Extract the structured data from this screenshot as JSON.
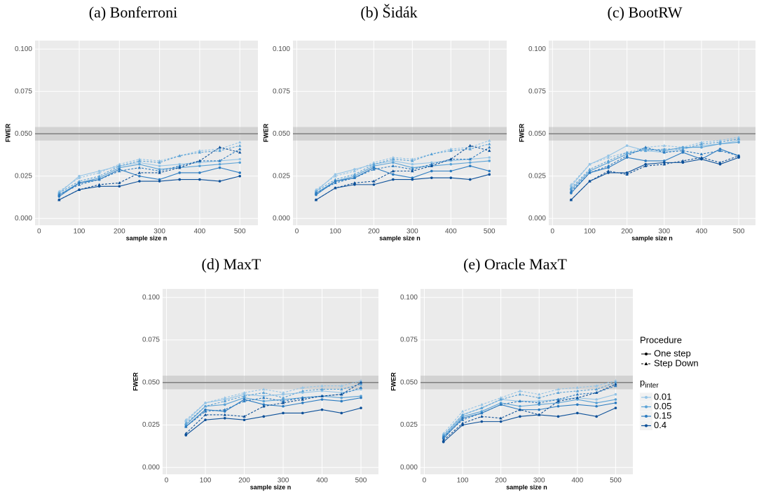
{
  "chart_data": [
    {
      "type": "line",
      "title": "(a) Bonferroni",
      "x_label": "sample size n",
      "y_label": "FWER",
      "x": [
        50,
        100,
        150,
        200,
        250,
        300,
        350,
        400,
        450,
        500
      ],
      "xlim": [
        -10,
        545
      ],
      "ylim": [
        -0.004,
        0.105
      ],
      "xticks": [
        0,
        100,
        200,
        300,
        400,
        500
      ],
      "yticks": [
        {
          "value": 0,
          "label": "0.000"
        },
        0.025,
        {
          "value": 0.05,
          "label": "0.050"
        },
        0.075,
        {
          "value": 0.1,
          "label": "0.100"
        }
      ],
      "grid": true,
      "reference_line": 0.05,
      "reference_band": [
        0.046,
        0.054
      ],
      "series": [
        {
          "p_inter": "0.01",
          "procedure": "One step",
          "values": [
            0.015,
            0.025,
            0.028,
            0.031,
            0.033,
            0.031,
            0.032,
            0.033,
            0.034,
            0.035
          ]
        },
        {
          "p_inter": "0.01",
          "procedure": "Step Down",
          "values": [
            0.016,
            0.024,
            0.027,
            0.032,
            0.035,
            0.034,
            0.037,
            0.04,
            0.041,
            0.045
          ]
        },
        {
          "p_inter": "0.05",
          "procedure": "One step",
          "values": [
            0.014,
            0.021,
            0.024,
            0.03,
            0.032,
            0.029,
            0.03,
            0.031,
            0.032,
            0.033
          ]
        },
        {
          "p_inter": "0.05",
          "procedure": "Step Down",
          "values": [
            0.015,
            0.022,
            0.025,
            0.031,
            0.034,
            0.033,
            0.037,
            0.039,
            0.04,
            0.043
          ]
        },
        {
          "p_inter": "0.15",
          "procedure": "One step",
          "values": [
            0.013,
            0.021,
            0.023,
            0.029,
            0.025,
            0.023,
            0.027,
            0.027,
            0.03,
            0.027
          ]
        },
        {
          "p_inter": "0.15",
          "procedure": "Step Down",
          "values": [
            0.014,
            0.02,
            0.023,
            0.028,
            0.03,
            0.028,
            0.031,
            0.034,
            0.034,
            0.041
          ]
        },
        {
          "p_inter": "0.4",
          "procedure": "One step",
          "values": [
            0.011,
            0.017,
            0.019,
            0.019,
            0.022,
            0.022,
            0.023,
            0.023,
            0.022,
            0.025
          ]
        },
        {
          "p_inter": "0.4",
          "procedure": "Step Down",
          "values": [
            0.011,
            0.017,
            0.02,
            0.021,
            0.027,
            0.027,
            0.03,
            0.034,
            0.042,
            0.039
          ]
        }
      ]
    },
    {
      "type": "line",
      "title": "(b) Šidák",
      "x_label": "sample size n",
      "y_label": "FWER",
      "x": [
        50,
        100,
        150,
        200,
        250,
        300,
        350,
        400,
        450,
        500
      ],
      "xlim": [
        -10,
        545
      ],
      "ylim": [
        -0.004,
        0.105
      ],
      "xticks": [
        0,
        100,
        200,
        300,
        400,
        500
      ],
      "yticks": [
        {
          "value": 0,
          "label": "0.000"
        },
        0.025,
        {
          "value": 0.05,
          "label": "0.050"
        },
        0.075,
        {
          "value": 0.1,
          "label": "0.100"
        }
      ],
      "grid": true,
      "reference_line": 0.05,
      "reference_band": [
        0.046,
        0.054
      ],
      "series": [
        {
          "p_inter": "0.01",
          "procedure": "One step",
          "values": [
            0.016,
            0.026,
            0.029,
            0.032,
            0.034,
            0.032,
            0.033,
            0.034,
            0.035,
            0.036
          ]
        },
        {
          "p_inter": "0.01",
          "procedure": "Step Down",
          "values": [
            0.017,
            0.025,
            0.028,
            0.033,
            0.036,
            0.035,
            0.038,
            0.041,
            0.042,
            0.046
          ]
        },
        {
          "p_inter": "0.05",
          "procedure": "One step",
          "values": [
            0.015,
            0.022,
            0.025,
            0.031,
            0.033,
            0.03,
            0.031,
            0.032,
            0.033,
            0.034
          ]
        },
        {
          "p_inter": "0.05",
          "procedure": "Step Down",
          "values": [
            0.016,
            0.023,
            0.026,
            0.032,
            0.035,
            0.034,
            0.038,
            0.04,
            0.041,
            0.044
          ]
        },
        {
          "p_inter": "0.15",
          "procedure": "One step",
          "values": [
            0.014,
            0.022,
            0.024,
            0.03,
            0.026,
            0.024,
            0.028,
            0.028,
            0.031,
            0.028
          ]
        },
        {
          "p_inter": "0.15",
          "procedure": "Step Down",
          "values": [
            0.015,
            0.021,
            0.024,
            0.029,
            0.031,
            0.029,
            0.032,
            0.035,
            0.035,
            0.042
          ]
        },
        {
          "p_inter": "0.4",
          "procedure": "One step",
          "values": [
            0.011,
            0.018,
            0.02,
            0.02,
            0.023,
            0.023,
            0.024,
            0.024,
            0.023,
            0.026
          ]
        },
        {
          "p_inter": "0.4",
          "procedure": "Step Down",
          "values": [
            0.011,
            0.018,
            0.021,
            0.022,
            0.028,
            0.028,
            0.031,
            0.035,
            0.043,
            0.04
          ]
        }
      ]
    },
    {
      "type": "line",
      "title": "(c) BootRW",
      "x_label": "sample size n",
      "y_label": "FWER",
      "x": [
        50,
        100,
        150,
        200,
        250,
        300,
        350,
        400,
        450,
        500
      ],
      "xlim": [
        -10,
        545
      ],
      "ylim": [
        -0.004,
        0.105
      ],
      "xticks": [
        0,
        100,
        200,
        300,
        400,
        500
      ],
      "yticks": [
        {
          "value": 0,
          "label": "0.000"
        },
        0.025,
        {
          "value": 0.05,
          "label": "0.050"
        },
        0.075,
        {
          "value": 0.1,
          "label": "0.100"
        }
      ],
      "grid": true,
      "reference_line": 0.05,
      "reference_band": [
        0.046,
        0.054
      ],
      "series": [
        {
          "p_inter": "0.01",
          "procedure": "One step",
          "values": [
            0.019,
            0.032,
            0.037,
            0.043,
            0.04,
            0.039,
            0.041,
            0.043,
            0.044,
            0.046
          ]
        },
        {
          "p_inter": "0.01",
          "procedure": "Step Down",
          "values": [
            0.02,
            0.032,
            0.036,
            0.039,
            0.042,
            0.043,
            0.042,
            0.045,
            0.046,
            0.048
          ]
        },
        {
          "p_inter": "0.05",
          "procedure": "One step",
          "values": [
            0.017,
            0.028,
            0.033,
            0.038,
            0.041,
            0.04,
            0.042,
            0.042,
            0.044,
            0.045
          ]
        },
        {
          "p_inter": "0.05",
          "procedure": "Step Down",
          "values": [
            0.018,
            0.029,
            0.034,
            0.039,
            0.04,
            0.041,
            0.041,
            0.044,
            0.045,
            0.047
          ]
        },
        {
          "p_inter": "0.15",
          "procedure": "One step",
          "values": [
            0.015,
            0.027,
            0.03,
            0.036,
            0.034,
            0.034,
            0.039,
            0.035,
            0.041,
            0.037
          ]
        },
        {
          "p_inter": "0.15",
          "procedure": "Step Down",
          "values": [
            0.016,
            0.027,
            0.031,
            0.037,
            0.042,
            0.039,
            0.04,
            0.038,
            0.04,
            0.037
          ]
        },
        {
          "p_inter": "0.4",
          "procedure": "One step",
          "values": [
            0.011,
            0.022,
            0.027,
            0.027,
            0.032,
            0.033,
            0.033,
            0.035,
            0.032,
            0.036
          ]
        },
        {
          "p_inter": "0.4",
          "procedure": "Step Down",
          "values": [
            0.011,
            0.022,
            0.028,
            0.026,
            0.031,
            0.032,
            0.034,
            0.036,
            0.033,
            0.037
          ]
        }
      ]
    },
    {
      "type": "line",
      "title": "(d) MaxT",
      "x_label": "sample size n",
      "y_label": "FWER",
      "x": [
        50,
        100,
        150,
        200,
        250,
        300,
        350,
        400,
        450,
        500
      ],
      "xlim": [
        -10,
        545
      ],
      "ylim": [
        -0.004,
        0.105
      ],
      "xticks": [
        0,
        100,
        200,
        300,
        400,
        500
      ],
      "yticks": [
        {
          "value": 0,
          "label": "0.000"
        },
        0.025,
        {
          "value": 0.05,
          "label": "0.050"
        },
        0.075,
        {
          "value": 0.1,
          "label": "0.100"
        }
      ],
      "grid": true,
      "reference_line": 0.05,
      "reference_band": [
        0.046,
        0.054
      ],
      "series": [
        {
          "p_inter": "0.01",
          "procedure": "One step",
          "values": [
            0.027,
            0.038,
            0.04,
            0.043,
            0.042,
            0.043,
            0.044,
            0.045,
            0.044,
            0.046
          ]
        },
        {
          "p_inter": "0.01",
          "procedure": "Step Down",
          "values": [
            0.028,
            0.038,
            0.041,
            0.044,
            0.046,
            0.044,
            0.047,
            0.048,
            0.048,
            0.051
          ]
        },
        {
          "p_inter": "0.05",
          "procedure": "One step",
          "values": [
            0.025,
            0.036,
            0.037,
            0.041,
            0.039,
            0.04,
            0.041,
            0.042,
            0.041,
            0.042
          ]
        },
        {
          "p_inter": "0.05",
          "procedure": "Step Down",
          "values": [
            0.026,
            0.036,
            0.039,
            0.042,
            0.044,
            0.041,
            0.045,
            0.046,
            0.046,
            0.049
          ]
        },
        {
          "p_inter": "0.15",
          "procedure": "One step",
          "values": [
            0.024,
            0.034,
            0.033,
            0.04,
            0.037,
            0.036,
            0.038,
            0.04,
            0.039,
            0.041
          ]
        },
        {
          "p_inter": "0.15",
          "procedure": "Step Down",
          "values": [
            0.024,
            0.033,
            0.034,
            0.039,
            0.041,
            0.039,
            0.041,
            0.042,
            0.043,
            0.047
          ]
        },
        {
          "p_inter": "0.4",
          "procedure": "One step",
          "values": [
            0.019,
            0.028,
            0.029,
            0.028,
            0.03,
            0.032,
            0.032,
            0.034,
            0.032,
            0.035
          ]
        },
        {
          "p_inter": "0.4",
          "procedure": "Step Down",
          "values": [
            0.02,
            0.031,
            0.031,
            0.03,
            0.036,
            0.038,
            0.04,
            0.042,
            0.043,
            0.05
          ]
        }
      ]
    },
    {
      "type": "line",
      "title": "(e) Oracle MaxT",
      "x_label": "sample size n",
      "y_label": "FWER",
      "x": [
        50,
        100,
        150,
        200,
        250,
        300,
        350,
        400,
        450,
        500
      ],
      "xlim": [
        -10,
        545
      ],
      "ylim": [
        -0.004,
        0.105
      ],
      "xticks": [
        0,
        100,
        200,
        300,
        400,
        500
      ],
      "yticks": [
        {
          "value": 0,
          "label": "0.000"
        },
        0.025,
        {
          "value": 0.05,
          "label": "0.050"
        },
        0.075,
        {
          "value": 0.1,
          "label": "0.100"
        }
      ],
      "grid": true,
      "reference_line": 0.05,
      "reference_band": [
        0.046,
        0.054
      ],
      "series": [
        {
          "p_inter": "0.01",
          "procedure": "One step",
          "values": [
            0.019,
            0.031,
            0.035,
            0.04,
            0.039,
            0.039,
            0.04,
            0.041,
            0.04,
            0.043
          ]
        },
        {
          "p_inter": "0.01",
          "procedure": "Step Down",
          "values": [
            0.02,
            0.033,
            0.037,
            0.041,
            0.045,
            0.043,
            0.046,
            0.047,
            0.048,
            0.051
          ]
        },
        {
          "p_inter": "0.05",
          "procedure": "One step",
          "values": [
            0.018,
            0.03,
            0.033,
            0.038,
            0.036,
            0.037,
            0.038,
            0.04,
            0.038,
            0.04
          ]
        },
        {
          "p_inter": "0.05",
          "procedure": "Step Down",
          "values": [
            0.019,
            0.031,
            0.035,
            0.04,
            0.043,
            0.041,
            0.044,
            0.045,
            0.046,
            0.05
          ]
        },
        {
          "p_inter": "0.15",
          "procedure": "One step",
          "values": [
            0.017,
            0.029,
            0.032,
            0.037,
            0.034,
            0.034,
            0.036,
            0.037,
            0.036,
            0.038
          ]
        },
        {
          "p_inter": "0.15",
          "procedure": "Step Down",
          "values": [
            0.018,
            0.028,
            0.032,
            0.037,
            0.039,
            0.038,
            0.04,
            0.043,
            0.044,
            0.048
          ]
        },
        {
          "p_inter": "0.4",
          "procedure": "One step",
          "values": [
            0.015,
            0.025,
            0.027,
            0.027,
            0.03,
            0.031,
            0.03,
            0.032,
            0.03,
            0.035
          ]
        },
        {
          "p_inter": "0.4",
          "procedure": "Step Down",
          "values": [
            0.016,
            0.026,
            0.03,
            0.029,
            0.034,
            0.031,
            0.039,
            0.041,
            0.044,
            0.049
          ]
        }
      ]
    }
  ],
  "legend": {
    "procedure": {
      "title": "Procedure",
      "items": [
        "One step",
        "Step Down"
      ]
    },
    "p_inter": {
      "title": "p",
      "title_sub": "inter",
      "items": [
        {
          "label": "0.01",
          "color": "#94c4e6"
        },
        {
          "label": "0.05",
          "color": "#5aa2d6"
        },
        {
          "label": "0.15",
          "color": "#2b7bc0"
        },
        {
          "label": "0.4",
          "color": "#0b4f98"
        }
      ]
    }
  }
}
